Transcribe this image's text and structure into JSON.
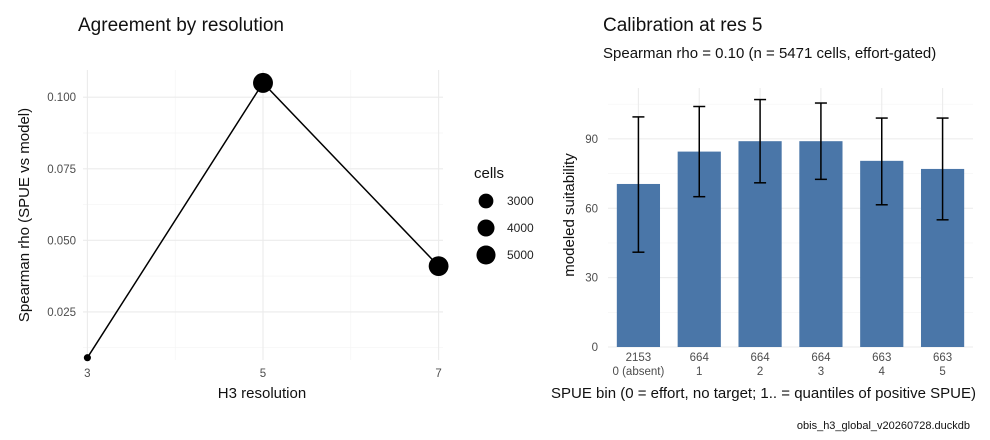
{
  "caption": "obis_h3_global_v20260728.duckdb",
  "chart_data": [
    {
      "type": "line",
      "title": "Agreement by resolution",
      "xlabel": "H3 resolution",
      "ylabel": "Spearman rho (SPUE vs model)",
      "x_ticks": [
        "3",
        "5",
        "7"
      ],
      "y_ticks": [
        "0.025",
        "0.050",
        "0.075",
        "0.100"
      ],
      "xlim": [
        2.95,
        7.05
      ],
      "ylim": [
        0.0082,
        0.1095
      ],
      "x": [
        3,
        5,
        7
      ],
      "y": [
        0.009,
        0.105,
        0.041
      ],
      "cells": [
        700,
        5471,
        5400
      ],
      "legend": {
        "title": "cells",
        "entries": [
          {
            "label": "3000",
            "value": 3000
          },
          {
            "label": "4000",
            "value": 4000
          },
          {
            "label": "5000",
            "value": 5000
          }
        ]
      },
      "colors": {
        "line": "#000000",
        "point": "#000000"
      }
    },
    {
      "type": "bar",
      "title": "Calibration at res 5",
      "subtitle": "Spearman rho = 0.10 (n = 5471 cells, effort-gated)",
      "xlabel": "SPUE bin (0 = effort, no target; 1.. = quantiles of positive SPUE)",
      "ylabel": "modeled suitability",
      "categories": [
        "0 (absent)",
        "1",
        "2",
        "3",
        "4",
        "5"
      ],
      "counts": [
        "2153",
        "664",
        "664",
        "664",
        "663",
        "663"
      ],
      "values": [
        70.5,
        84.5,
        89,
        89,
        80.5,
        77
      ],
      "err_low": [
        41,
        65,
        71,
        72.5,
        61.5,
        55
      ],
      "err_high": [
        99.5,
        104,
        107,
        105.5,
        99,
        99
      ],
      "y_ticks": [
        "0",
        "30",
        "60",
        "90"
      ],
      "ylim": [
        0,
        112
      ],
      "colors": {
        "bar": "#4a76a8",
        "error": "#000000"
      }
    }
  ]
}
